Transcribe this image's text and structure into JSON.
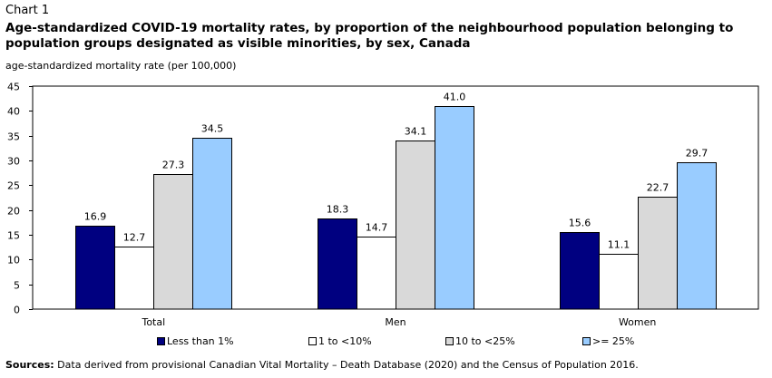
{
  "header": {
    "chart_label": "Chart 1",
    "title": "Age-standardized COVID-19 mortality rates, by proportion of the neighbourhood population belonging to population groups designated as visible minorities, by sex, Canada",
    "unit_label": "age-standardized mortality rate (per 100,000)"
  },
  "footer": {
    "source_label": "Sources:",
    "source_text": "Data derived from provisional Canadian Vital Mortality – Death Database (2020) and the Census of Population 2016."
  },
  "chart_data": {
    "type": "bar",
    "title": "Age-standardized COVID-19 mortality rates, by proportion of the neighbourhood population belonging to population groups designated as visible minorities, by sex, Canada",
    "ylabel": "age-standardized mortality rate (per 100,000)",
    "xlabel": "",
    "ylim": [
      0,
      45
    ],
    "yticks": [
      0,
      5,
      10,
      15,
      20,
      25,
      30,
      35,
      40,
      45
    ],
    "grid": false,
    "legend_position": "bottom",
    "categories": [
      "Total",
      "Men",
      "Women"
    ],
    "series": [
      {
        "name": "Less than 1%",
        "color": "#000080",
        "values": [
          16.9,
          18.3,
          15.6
        ],
        "labels": [
          "16.9",
          "18.3",
          "15.6"
        ]
      },
      {
        "name": "1 to <10%",
        "color": "#ffffff",
        "values": [
          12.7,
          14.7,
          11.1
        ],
        "labels": [
          "12.7",
          "14.7",
          "11.1"
        ]
      },
      {
        "name": "10 to <25%",
        "color": "#d9d9d9",
        "values": [
          27.3,
          34.1,
          22.7
        ],
        "labels": [
          "27.3",
          "34.1",
          "22.7"
        ]
      },
      {
        "name": ">= 25%",
        "color": "#99ccff",
        "values": [
          34.5,
          41.0,
          29.7
        ],
        "labels": [
          "34.5",
          "41.0",
          "29.7"
        ]
      }
    ]
  }
}
